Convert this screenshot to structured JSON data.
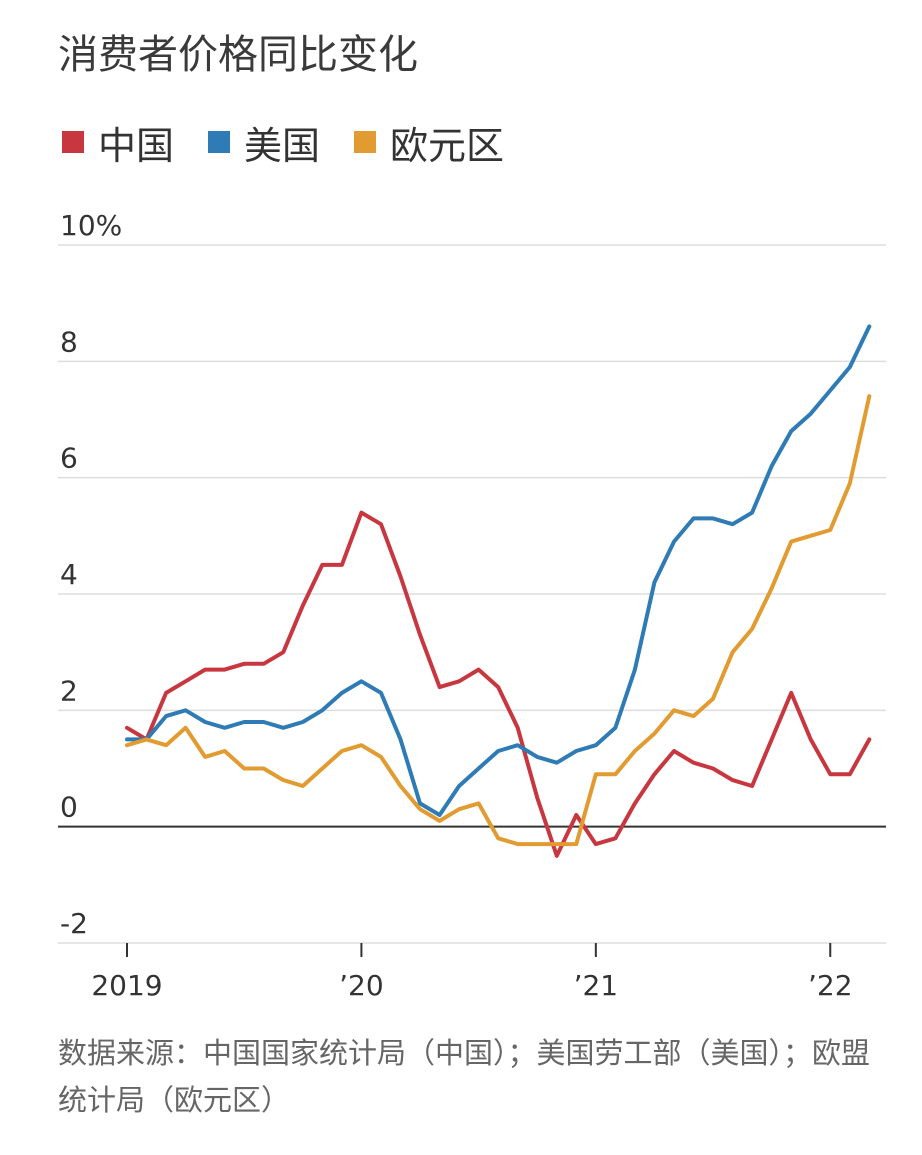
{
  "title": "消费者价格同比变化",
  "source": "数据来源：中国国家统计局（中国）；美国劳工部（美国）；欧盟统计局（欧元区）",
  "colors": {
    "china": "#c8373f",
    "us": "#2e7bb5",
    "eurozone": "#e29b30",
    "grid": "#dddddd",
    "zero": "#333333"
  },
  "legend": [
    {
      "label": "中国",
      "color": "#c8373f"
    },
    {
      "label": "美国",
      "color": "#2e7bb5"
    },
    {
      "label": "欧元区",
      "color": "#e29b30"
    }
  ],
  "chart_data": {
    "type": "line",
    "title": "消费者价格同比变化",
    "ylim": [
      -2,
      10
    ],
    "y_ticks": [
      {
        "value": 10,
        "label": "10%"
      },
      {
        "value": 8,
        "label": "8"
      },
      {
        "value": 6,
        "label": "6"
      },
      {
        "value": 4,
        "label": "4"
      },
      {
        "value": 2,
        "label": "2"
      },
      {
        "value": 0,
        "label": "0"
      },
      {
        "value": -2,
        "label": "-2"
      }
    ],
    "x_ticks": [
      {
        "index": 0,
        "label": "2019"
      },
      {
        "index": 12,
        "label": "’20"
      },
      {
        "index": 24,
        "label": "’21"
      },
      {
        "index": 36,
        "label": "’22"
      }
    ],
    "x_range": [
      0,
      38.7
    ],
    "grid": true,
    "legend_position": "top-left",
    "x": [
      "2019-01",
      "2019-02",
      "2019-03",
      "2019-04",
      "2019-05",
      "2019-06",
      "2019-07",
      "2019-08",
      "2019-09",
      "2019-10",
      "2019-11",
      "2019-12",
      "2020-01",
      "2020-02",
      "2020-03",
      "2020-04",
      "2020-05",
      "2020-06",
      "2020-07",
      "2020-08",
      "2020-09",
      "2020-10",
      "2020-11",
      "2020-12",
      "2021-01",
      "2021-02",
      "2021-03",
      "2021-04",
      "2021-05",
      "2021-06",
      "2021-07",
      "2021-08",
      "2021-09",
      "2021-10",
      "2021-11",
      "2021-12",
      "2022-01",
      "2022-02",
      "2022-03"
    ],
    "series": [
      {
        "name": "中国",
        "color": "#c8373f",
        "values": [
          1.7,
          1.5,
          2.3,
          2.5,
          2.7,
          2.7,
          2.8,
          2.8,
          3.0,
          3.8,
          4.5,
          4.5,
          5.4,
          5.2,
          4.3,
          3.3,
          2.4,
          2.5,
          2.7,
          2.4,
          1.7,
          0.5,
          -0.5,
          0.2,
          -0.3,
          -0.2,
          0.4,
          0.9,
          1.3,
          1.1,
          1.0,
          0.8,
          0.7,
          1.5,
          2.3,
          1.5,
          0.9,
          0.9,
          1.5
        ]
      },
      {
        "name": "美国",
        "color": "#2e7bb5",
        "values": [
          1.5,
          1.5,
          1.9,
          2.0,
          1.8,
          1.7,
          1.8,
          1.8,
          1.7,
          1.8,
          2.0,
          2.3,
          2.5,
          2.3,
          1.5,
          0.4,
          0.2,
          0.7,
          1.0,
          1.3,
          1.4,
          1.2,
          1.1,
          1.3,
          1.4,
          1.7,
          2.7,
          4.2,
          4.9,
          5.3,
          5.3,
          5.2,
          5.4,
          6.2,
          6.8,
          7.1,
          7.5,
          7.9,
          8.6
        ]
      },
      {
        "name": "欧元区",
        "color": "#e29b30",
        "values": [
          1.4,
          1.5,
          1.4,
          1.7,
          1.2,
          1.3,
          1.0,
          1.0,
          0.8,
          0.7,
          1.0,
          1.3,
          1.4,
          1.2,
          0.7,
          0.3,
          0.1,
          0.3,
          0.4,
          -0.2,
          -0.3,
          -0.3,
          -0.3,
          -0.3,
          0.9,
          0.9,
          1.3,
          1.6,
          2.0,
          1.9,
          2.2,
          3.0,
          3.4,
          4.1,
          4.9,
          5.0,
          5.1,
          5.9,
          7.4
        ]
      }
    ]
  }
}
